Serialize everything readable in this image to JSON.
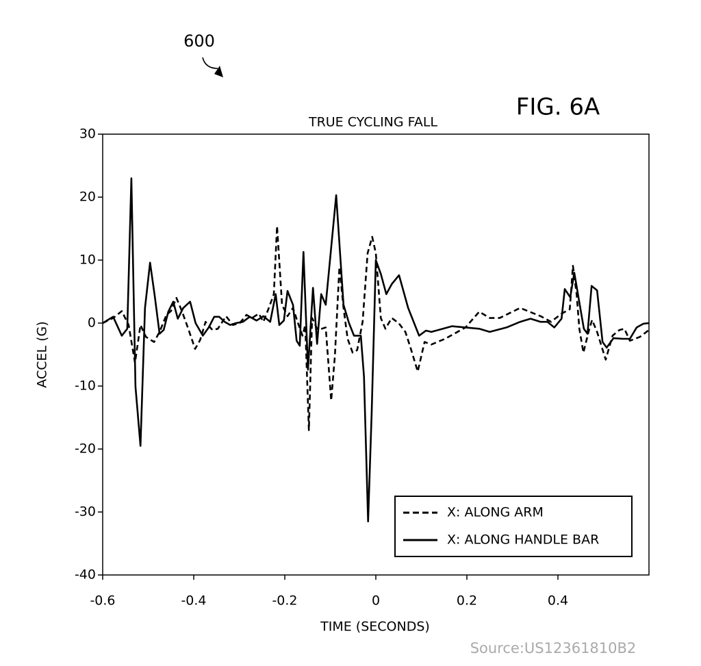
{
  "chart_data": {
    "type": "line",
    "title": "TRUE CYCLING FALL",
    "figure_label": "FIG. 6A",
    "reference_numeral": "600",
    "source": "Source:US12361810B2",
    "xlabel": "TIME (SECONDS)",
    "ylabel": "ACCEL (G)",
    "xlim": [
      -0.6,
      0.6
    ],
    "ylim": [
      -40,
      30
    ],
    "xticks": [
      -0.6,
      -0.4,
      -0.2,
      0,
      0.2,
      0.4
    ],
    "yticks": [
      -40,
      -30,
      -20,
      -10,
      0,
      10,
      20,
      30
    ],
    "legend": "lower right",
    "grid": false,
    "series": [
      {
        "name": "X: ALONG ARM",
        "color": "#000000",
        "dashed": true,
        "x": [
          -0.6,
          -0.577,
          -0.558,
          -0.543,
          -0.529,
          -0.517,
          -0.505,
          -0.487,
          -0.475,
          -0.46,
          -0.45,
          -0.438,
          -0.426,
          -0.412,
          -0.397,
          -0.386,
          -0.374,
          -0.359,
          -0.347,
          -0.329,
          -0.314,
          -0.299,
          -0.284,
          -0.272,
          -0.257,
          -0.247,
          -0.235,
          -0.224,
          -0.217,
          -0.206,
          -0.194,
          -0.182,
          -0.171,
          -0.161,
          -0.155,
          -0.147,
          -0.14,
          -0.129,
          -0.119,
          -0.11,
          -0.098,
          -0.09,
          -0.08,
          -0.071,
          -0.062,
          -0.051,
          -0.041,
          -0.029,
          -0.018,
          -0.008,
          0,
          0.011,
          0.021,
          0.035,
          0.05,
          0.065,
          0.077,
          0.092,
          0.107,
          0.122,
          0.152,
          0.197,
          0.227,
          0.25,
          0.272,
          0.317,
          0.362,
          0.385,
          0.408,
          0.426,
          0.433,
          0.441,
          0.447,
          0.456,
          0.468,
          0.475,
          0.486,
          0.505,
          0.52,
          0.535,
          0.546,
          0.558,
          0.58,
          0.6
        ],
        "values": [
          0,
          0.8,
          1.9,
          -0.3,
          -6.3,
          -0.3,
          -2.2,
          -3,
          -1.4,
          1.3,
          1.9,
          4,
          1.9,
          -0.9,
          -4.1,
          -2.7,
          0.2,
          -1.1,
          -0.9,
          1.1,
          -0.3,
          0,
          1.3,
          0.8,
          1.5,
          0.2,
          2.4,
          4.6,
          15.4,
          2.9,
          1.1,
          2.4,
          0,
          -2,
          -0.3,
          -17,
          0.8,
          -0.9,
          -0.9,
          -0.7,
          -12.3,
          -5.2,
          8.9,
          2.4,
          -2.5,
          -4.7,
          -4.3,
          0.2,
          11.1,
          13.7,
          11.1,
          0.8,
          -0.9,
          0.8,
          0,
          -1.4,
          -4.1,
          -7.7,
          -3,
          -3.4,
          -2.5,
          -0.7,
          1.8,
          0.8,
          0.8,
          2.4,
          1.1,
          0.2,
          1.5,
          2.2,
          9.1,
          4.6,
          -0.9,
          -4.7,
          -1.2,
          0.5,
          -1.4,
          -5.8,
          -2,
          -1.1,
          -0.9,
          -2.8,
          -2.2,
          -1.1
        ]
      },
      {
        "name": "X: ALONG HANDLE BAR",
        "color": "#000000",
        "dashed": false,
        "x": [
          -0.6,
          -0.577,
          -0.558,
          -0.546,
          -0.537,
          -0.528,
          -0.517,
          -0.507,
          -0.496,
          -0.486,
          -0.475,
          -0.466,
          -0.456,
          -0.445,
          -0.435,
          -0.423,
          -0.408,
          -0.396,
          -0.38,
          -0.367,
          -0.355,
          -0.344,
          -0.332,
          -0.32,
          -0.307,
          -0.292,
          -0.277,
          -0.262,
          -0.247,
          -0.232,
          -0.22,
          -0.212,
          -0.202,
          -0.194,
          -0.182,
          -0.174,
          -0.167,
          -0.159,
          -0.149,
          -0.138,
          -0.129,
          -0.12,
          -0.11,
          -0.087,
          -0.071,
          -0.059,
          -0.048,
          -0.033,
          -0.026,
          -0.017,
          -0.009,
          0,
          0.011,
          0.023,
          0.035,
          0.051,
          0.071,
          0.095,
          0.11,
          0.122,
          0.167,
          0.227,
          0.25,
          0.287,
          0.317,
          0.34,
          0.362,
          0.377,
          0.392,
          0.408,
          0.415,
          0.427,
          0.436,
          0.448,
          0.457,
          0.465,
          0.474,
          0.486,
          0.498,
          0.507,
          0.522,
          0.543,
          0.558,
          0.573,
          0.588,
          0.6
        ],
        "values": [
          0,
          1,
          -2,
          -0.9,
          23,
          -10.1,
          -19.5,
          2.4,
          9.6,
          4.5,
          -1.7,
          -1.1,
          1.8,
          3.4,
          0.7,
          2.4,
          3.4,
          0,
          -2,
          -0.7,
          1,
          1,
          0.2,
          -0.3,
          0,
          0.2,
          1,
          0.4,
          1.1,
          0.2,
          4.6,
          -0.3,
          0.4,
          5.1,
          2.9,
          -2.8,
          -3.6,
          11.3,
          -7.4,
          5.6,
          -3.3,
          4.6,
          2.9,
          20.3,
          2.9,
          0,
          -2,
          -2,
          -8.5,
          -31.5,
          -14,
          10,
          7.8,
          4.6,
          6.2,
          7.6,
          2.4,
          -2,
          -1.2,
          -1.4,
          -0.5,
          -0.9,
          -1.4,
          -0.7,
          0.2,
          0.7,
          0.2,
          0.2,
          -0.7,
          0.7,
          5.4,
          4.1,
          8,
          2.9,
          -0.9,
          -1.7,
          5.9,
          5.2,
          -3,
          -3.9,
          -2.4,
          -2.5,
          -2.5,
          -0.7,
          -0.1,
          0
        ]
      }
    ]
  }
}
